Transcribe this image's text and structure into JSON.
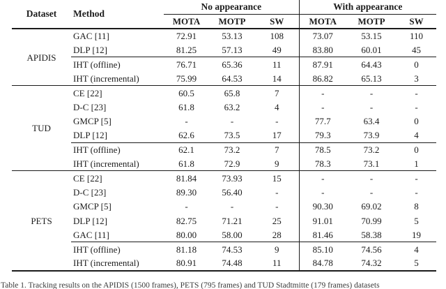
{
  "header": {
    "dataset": "Dataset",
    "method": "Method",
    "no_appearance": "No appearance",
    "with_appearance": "With appearance",
    "sub_mota": "MOTA",
    "sub_motp": "MOTP",
    "sub_sw": "SW"
  },
  "groups": [
    {
      "dataset": "APIDIS",
      "rows": [
        {
          "method": "GAC [11]",
          "cells": [
            "72.91",
            "53.13",
            "108",
            "73.07",
            "53.15",
            "110"
          ]
        },
        {
          "method": "DLP [12]",
          "cells": [
            "81.25",
            "57.13",
            "49",
            "83.80",
            "60.01",
            "45"
          ]
        },
        {
          "method": "IHT (offline)",
          "cells": [
            "76.71",
            "65.36",
            "11",
            "87.91",
            "64.43",
            "0"
          ]
        },
        {
          "method": "IHT (incremental)",
          "cells": [
            "75.99",
            "64.53",
            "14",
            "86.82",
            "65.13",
            "3"
          ]
        }
      ]
    },
    {
      "dataset": "TUD",
      "rows": [
        {
          "method": "CE [22]",
          "cells": [
            "60.5",
            "65.8",
            "7",
            "-",
            "-",
            "-"
          ]
        },
        {
          "method": "D-C [23]",
          "cells": [
            "61.8",
            "63.2",
            "4",
            "-",
            "-",
            "-"
          ]
        },
        {
          "method": "GMCP [5]",
          "cells": [
            "-",
            "-",
            "-",
            "77.7",
            "63.4",
            "0"
          ]
        },
        {
          "method": "DLP [12]",
          "cells": [
            "62.6",
            "73.5",
            "17",
            "79.3",
            "73.9",
            "4"
          ]
        },
        {
          "method": "IHT (offline)",
          "cells": [
            "62.1",
            "73.2",
            "7",
            "78.5",
            "73.2",
            "0"
          ]
        },
        {
          "method": "IHT (incremental)",
          "cells": [
            "61.8",
            "72.9",
            "9",
            "78.3",
            "73.1",
            "1"
          ]
        }
      ]
    },
    {
      "dataset": "PETS",
      "rows": [
        {
          "method": "CE [22]",
          "cells": [
            "81.84",
            "73.93",
            "15",
            "-",
            "-",
            "-"
          ]
        },
        {
          "method": "D-C [23]",
          "cells": [
            "89.30",
            "56.40",
            "-",
            "-",
            "-",
            "-"
          ]
        },
        {
          "method": "GMCP [5]",
          "cells": [
            "-",
            "-",
            "-",
            "90.30",
            "69.02",
            "8"
          ]
        },
        {
          "method": "DLP [12]",
          "cells": [
            "82.75",
            "71.21",
            "25",
            "91.01",
            "70.99",
            "5"
          ]
        },
        {
          "method": "GAC [11]",
          "cells": [
            "80.00",
            "58.00",
            "28",
            "81.46",
            "58.38",
            "19"
          ]
        },
        {
          "method": "IHT (offline)",
          "cells": [
            "81.18",
            "74.53",
            "9",
            "85.10",
            "74.56",
            "4"
          ]
        },
        {
          "method": "IHT (incremental)",
          "cells": [
            "80.91",
            "74.48",
            "11",
            "84.78",
            "74.32",
            "5"
          ]
        }
      ]
    }
  ],
  "caption": "Table 1. Tracking results on the APIDIS (1500 frames), PETS (795 frames) and TUD Stadtmitte (179 frames) datasets"
}
